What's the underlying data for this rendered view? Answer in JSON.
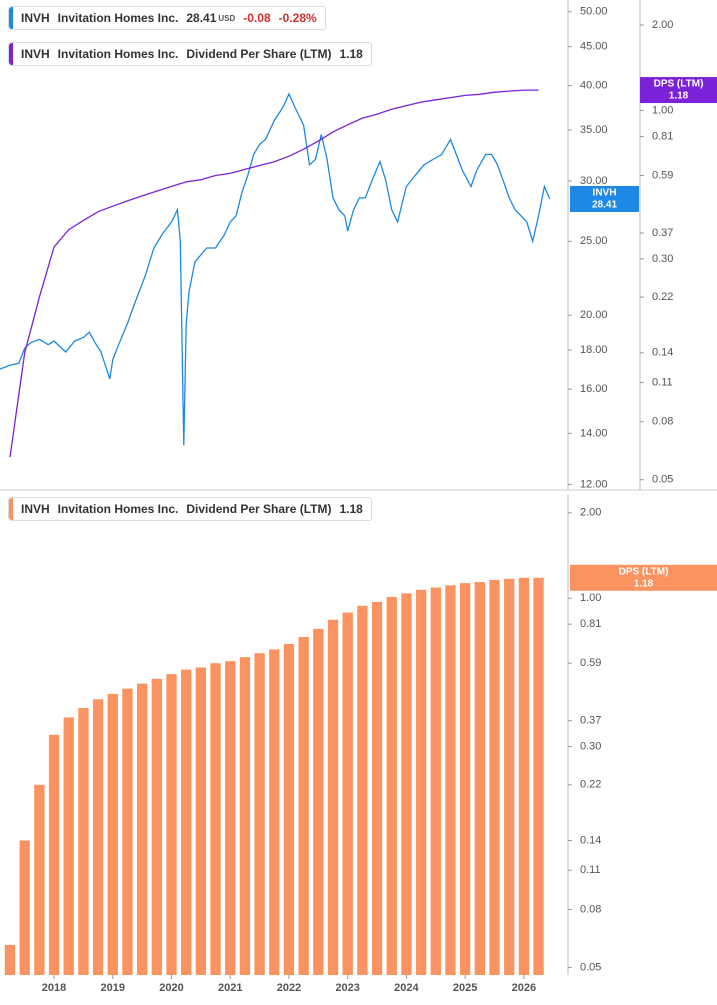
{
  "chart_data": [
    {
      "type": "line",
      "log_scale": true,
      "xlim": [
        2017.08,
        2026.7
      ],
      "ylim": [
        11.8,
        51.8
      ],
      "yticks": [
        {
          "value": 50,
          "label": "50.00"
        },
        {
          "value": 45,
          "label": "45.00"
        },
        {
          "value": 40,
          "label": "40.00"
        },
        {
          "value": 35,
          "label": "35.00"
        },
        {
          "value": 30,
          "label": "30.00"
        },
        {
          "value": 25,
          "label": "25.00"
        },
        {
          "value": 20,
          "label": "20.00"
        },
        {
          "value": 18,
          "label": "18.00"
        },
        {
          "value": 16,
          "label": "16.00"
        },
        {
          "value": 14,
          "label": "14.00"
        },
        {
          "value": 12,
          "label": "12.00"
        }
      ],
      "y2lim": [
        0.046,
        2.45
      ],
      "y2ticks": [
        {
          "value": 2,
          "label": "2.00"
        },
        {
          "value": 1,
          "label": "1.00"
        },
        0.81,
        0.59,
        0.37,
        {
          "value": 0.3,
          "label": "0.30"
        },
        0.22,
        0.14,
        0.11,
        0.08,
        0.05
      ],
      "series": [
        {
          "name": "Invitation Homes Inc.",
          "symbol": "INVH",
          "badge": "INVH",
          "currency": "USD",
          "change": -0.08,
          "change_pct": {
            "value": -0.28,
            "label": "-0.28%"
          },
          "color": "#1e88e5",
          "x": [
            2017.08,
            2017.25,
            2017.4,
            2017.5,
            2017.6,
            2017.75,
            2017.9,
            2018.0,
            2018.2,
            2018.35,
            2018.5,
            2018.6,
            2018.7,
            2018.8,
            2018.95,
            2019.0,
            2019.1,
            2019.25,
            2019.4,
            2019.55,
            2019.7,
            2019.85,
            2020.0,
            2020.1,
            2020.15,
            2020.21,
            2020.25,
            2020.3,
            2020.4,
            2020.5,
            2020.6,
            2020.75,
            2020.9,
            2021.0,
            2021.1,
            2021.2,
            2021.3,
            2021.4,
            2021.5,
            2021.6,
            2021.75,
            2021.9,
            2022.0,
            2022.1,
            2022.25,
            2022.35,
            2022.45,
            2022.55,
            2022.65,
            2022.75,
            2022.85,
            2022.95,
            2023.0,
            2023.1,
            2023.2,
            2023.3,
            2023.45,
            2023.55,
            2023.65,
            2023.75,
            2023.85,
            2023.95,
            2024.0,
            2024.15,
            2024.3,
            2024.45,
            2024.6,
            2024.75,
            2024.85,
            2024.95,
            2025.1,
            2025.2,
            2025.35,
            2025.45,
            2025.55,
            2025.65,
            2025.75,
            2025.85,
            2025.95,
            2026.05,
            2026.15,
            2026.25,
            2026.35,
            2026.44
          ],
          "values": [
            17.0,
            17.2,
            17.3,
            18.1,
            18.4,
            18.6,
            18.3,
            18.5,
            17.9,
            18.5,
            18.7,
            19.0,
            18.4,
            17.9,
            16.5,
            17.5,
            18.3,
            19.5,
            21.0,
            22.5,
            24.5,
            25.6,
            26.5,
            27.5,
            25.0,
            13.5,
            19.5,
            21.5,
            23.5,
            24.0,
            24.5,
            24.5,
            25.5,
            26.5,
            27.0,
            29.0,
            30.5,
            32.5,
            33.5,
            34.0,
            36.0,
            37.5,
            39.0,
            37.5,
            35.5,
            31.5,
            32.0,
            34.5,
            32.0,
            28.5,
            27.5,
            27.0,
            25.8,
            27.5,
            28.5,
            28.5,
            30.5,
            31.8,
            30.0,
            27.5,
            26.5,
            28.5,
            29.5,
            30.5,
            31.5,
            32.0,
            32.5,
            34.0,
            32.5,
            31.0,
            29.5,
            31.0,
            32.5,
            32.5,
            31.5,
            30.0,
            28.5,
            27.5,
            27.0,
            26.5,
            25.0,
            27.0,
            29.5,
            28.41
          ]
        },
        {
          "name": "Dividend Per Share (LTM)",
          "symbol": "INVH",
          "company": "Invitation Homes Inc.",
          "badge": "DPS (LTM)",
          "axis": "y2",
          "color": "#7b22d8",
          "x": [
            2017.25,
            2017.5,
            2017.75,
            2018.0,
            2018.25,
            2018.5,
            2018.75,
            2019.0,
            2019.25,
            2019.5,
            2019.75,
            2020.0,
            2020.25,
            2020.5,
            2020.75,
            2021.0,
            2021.25,
            2021.5,
            2021.75,
            2022.0,
            2022.25,
            2022.5,
            2022.75,
            2023.0,
            2023.25,
            2023.5,
            2023.75,
            2024.0,
            2024.25,
            2024.5,
            2024.75,
            2025.0,
            2025.25,
            2025.5,
            2025.75,
            2026.0,
            2026.25
          ],
          "values": [
            0.06,
            0.14,
            0.22,
            0.33,
            0.38,
            0.41,
            0.44,
            0.46,
            0.48,
            0.5,
            0.52,
            0.54,
            0.56,
            0.57,
            0.59,
            0.6,
            0.62,
            0.64,
            0.66,
            0.69,
            0.73,
            0.78,
            0.84,
            0.89,
            0.94,
            0.97,
            1.01,
            1.04,
            1.07,
            1.09,
            1.11,
            1.13,
            1.14,
            1.16,
            1.17,
            1.18,
            1.18
          ]
        }
      ]
    },
    {
      "type": "bar",
      "log_scale": true,
      "xlim": [
        2017.08,
        2026.7
      ],
      "xticks": [
        2018,
        2019,
        2020,
        2021,
        2022,
        2023,
        2024,
        2025,
        2026
      ],
      "ylim": [
        0.047,
        2.31
      ],
      "yticks": [
        {
          "value": 2,
          "label": "2.00"
        },
        {
          "value": 1,
          "label": "1.00"
        },
        0.81,
        0.59,
        0.37,
        {
          "value": 0.3,
          "label": "0.30"
        },
        0.22,
        0.14,
        0.11,
        0.08,
        0.05
      ],
      "series": [
        {
          "name": "Dividend Per Share (LTM)",
          "symbol": "INVH",
          "company": "Invitation Homes Inc.",
          "badge": "DPS (LTM)",
          "color": "#fa9360",
          "x": [
            2017.25,
            2017.5,
            2017.75,
            2018.0,
            2018.25,
            2018.5,
            2018.75,
            2019.0,
            2019.25,
            2019.5,
            2019.75,
            2020.0,
            2020.25,
            2020.5,
            2020.75,
            2021.0,
            2021.25,
            2021.5,
            2021.75,
            2022.0,
            2022.25,
            2022.5,
            2022.75,
            2023.0,
            2023.25,
            2023.5,
            2023.75,
            2024.0,
            2024.25,
            2024.5,
            2024.75,
            2025.0,
            2025.25,
            2025.5,
            2025.75,
            2026.0,
            2026.25
          ],
          "values": [
            0.06,
            0.14,
            0.22,
            0.33,
            0.38,
            0.41,
            0.44,
            0.46,
            0.48,
            0.5,
            0.52,
            0.54,
            0.56,
            0.57,
            0.59,
            0.6,
            0.62,
            0.64,
            0.66,
            0.69,
            0.73,
            0.78,
            0.84,
            0.89,
            0.94,
            0.97,
            1.01,
            1.04,
            1.07,
            1.09,
            1.11,
            1.13,
            1.14,
            1.16,
            1.17,
            1.18,
            1.18
          ]
        }
      ]
    }
  ]
}
